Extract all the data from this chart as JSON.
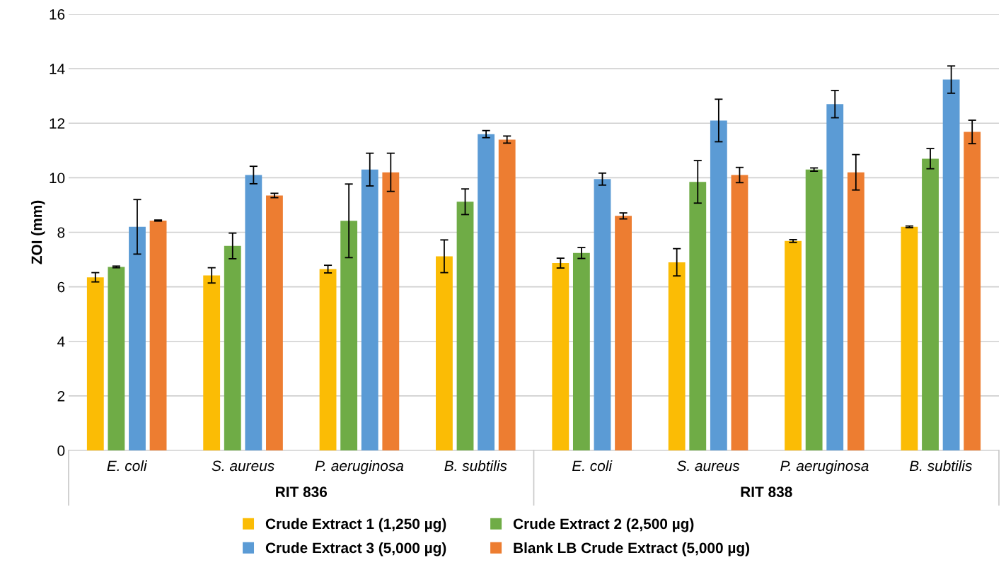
{
  "chart_data": {
    "type": "bar",
    "ylabel": "ZOI (mm)",
    "categories": [
      "E. coli",
      "S. aureus",
      "P. aeruginosa",
      "B. subtilis",
      "E. coli",
      "S. aureus",
      "P. aeruginosa",
      "B. subtilis"
    ],
    "annotations": [
      "RIT 836",
      "RIT 838"
    ],
    "series": [
      {
        "name": "Crude Extract 1 (1,250 µg)",
        "color": "#fbbc05",
        "values": [
          6.35,
          6.42,
          6.65,
          7.12,
          6.87,
          6.9,
          7.68,
          8.2
        ],
        "errors": [
          0.17,
          0.28,
          0.14,
          0.6,
          0.18,
          0.5,
          0.05,
          0.03
        ]
      },
      {
        "name": "Crude Extract 2 (2,500 µg)",
        "color": "#6fac46",
        "values": [
          6.73,
          7.5,
          8.42,
          9.12,
          7.24,
          9.85,
          10.3,
          10.7
        ],
        "errors": [
          0.03,
          0.47,
          1.35,
          0.47,
          0.2,
          0.78,
          0.06,
          0.37
        ]
      },
      {
        "name": "Crude Extract 3 (5,000 µg)",
        "color": "#5b9bd5",
        "values": [
          8.2,
          10.1,
          10.3,
          11.6,
          9.95,
          12.1,
          12.7,
          13.6
        ],
        "errors": [
          1.0,
          0.32,
          0.6,
          0.13,
          0.22,
          0.78,
          0.5,
          0.5
        ]
      },
      {
        "name": "Blank LB Crude Extract (5,000 µg)",
        "color": "#ed7d31",
        "values": [
          8.43,
          9.35,
          10.2,
          11.4,
          8.6,
          10.1,
          10.2,
          11.68
        ],
        "errors": [
          0.02,
          0.08,
          0.7,
          0.13,
          0.11,
          0.28,
          0.65,
          0.43
        ]
      }
    ],
    "ylim": [
      0,
      16
    ],
    "yticks": [
      0,
      2,
      4,
      6,
      8,
      10,
      12,
      14,
      16
    ],
    "grid": "y",
    "legend": "bottom"
  }
}
